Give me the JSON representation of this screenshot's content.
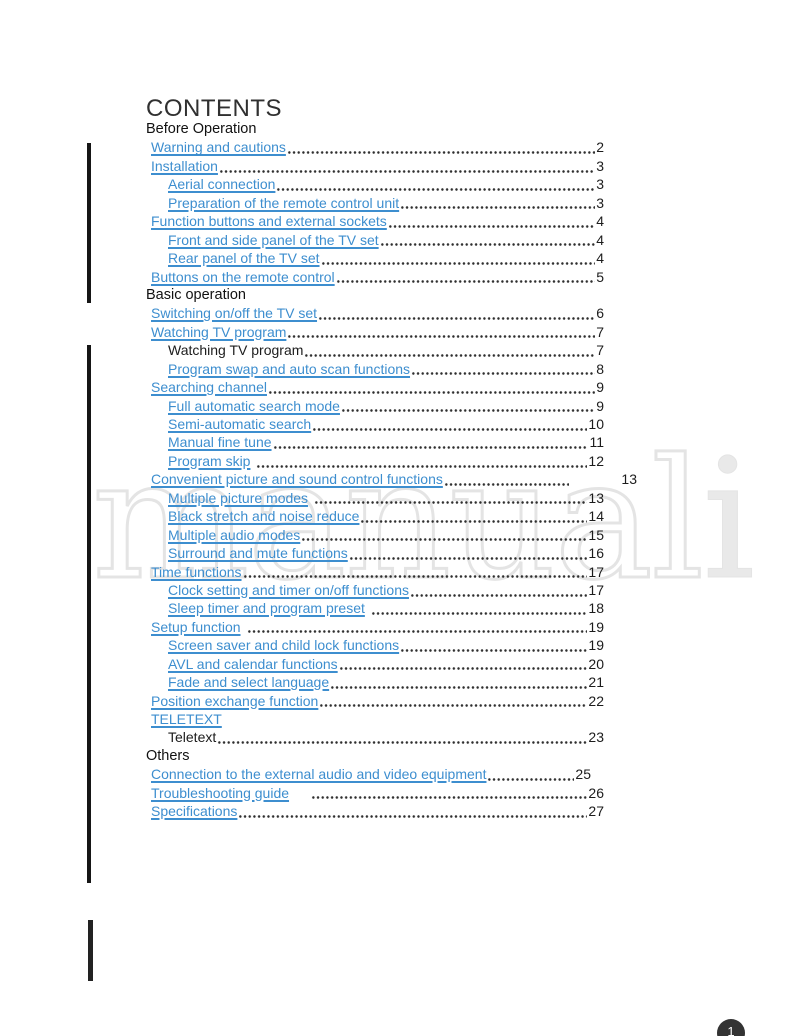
{
  "heading": "CONTENTS",
  "page_badge": "1",
  "watermark": {
    "outline_text": "manual",
    "solid_text": "i"
  },
  "colors": {
    "link_blue": "#3d8ecf",
    "body_text": "#1c1c1c",
    "watermark_gray": "#e4e4e4",
    "badge_dark": "#333333"
  },
  "toc": {
    "rows": [
      {
        "type": "section",
        "label": "Before Operation"
      },
      {
        "type": "entry",
        "level": 1,
        "link": true,
        "label": "Warning and cautions",
        "page": "2"
      },
      {
        "type": "entry",
        "level": 1,
        "link": true,
        "label": "Installation",
        "page": "3"
      },
      {
        "type": "entry",
        "level": 2,
        "link": true,
        "label": "Aerial connection",
        "page": "3"
      },
      {
        "type": "entry",
        "level": 2,
        "link": true,
        "label": "Preparation of the remote control unit",
        "page": "3"
      },
      {
        "type": "entry",
        "level": 1,
        "link": true,
        "label": "Function buttons and external sockets",
        "page": "4"
      },
      {
        "type": "entry",
        "level": 2,
        "link": true,
        "label": "Front and side panel of the TV set",
        "page": "4"
      },
      {
        "type": "entry",
        "level": 2,
        "link": true,
        "label": "Rear panel of the TV set",
        "page": "4"
      },
      {
        "type": "entry",
        "level": 1,
        "link": true,
        "label": "Buttons on the remote control",
        "page": "5"
      },
      {
        "type": "section",
        "label": "Basic operation"
      },
      {
        "type": "entry",
        "level": 1,
        "link": true,
        "label": "Switching on/off the TV set",
        "page": "6"
      },
      {
        "type": "entry",
        "level": 1,
        "link": true,
        "label": "Watching TV program",
        "page": "7"
      },
      {
        "type": "entry",
        "level": 2,
        "link": false,
        "label": "Watching TV program",
        "page": "7"
      },
      {
        "type": "entry",
        "level": 2,
        "link": true,
        "label": "Program swap and auto scan functions",
        "page": "8"
      },
      {
        "type": "entry",
        "level": 1,
        "link": true,
        "label": "Searching channel",
        "page": "9"
      },
      {
        "type": "entry",
        "level": 2,
        "link": true,
        "label": "Full automatic search mode",
        "page": "9"
      },
      {
        "type": "entry",
        "level": 2,
        "link": true,
        "label": "Semi-automatic search",
        "page": "10"
      },
      {
        "type": "entry",
        "level": 2,
        "link": true,
        "label": "Manual fine tune",
        "page": "11"
      },
      {
        "type": "entry",
        "level": 2,
        "link": true,
        "label": "Program skip",
        "page": "12",
        "variant": "gap"
      },
      {
        "type": "entry",
        "level": 1,
        "link": true,
        "label": "Convenient picture and sound control functions",
        "page": "13",
        "variant": "num-far"
      },
      {
        "type": "entry",
        "level": 2,
        "link": true,
        "label": "Multiple picture modes",
        "page": "13",
        "variant": "gap"
      },
      {
        "type": "entry",
        "level": 2,
        "link": true,
        "label": "Black stretch and noise reduce",
        "page": "14"
      },
      {
        "type": "entry",
        "level": 2,
        "link": true,
        "label": "Multiple audio modes",
        "page": "15"
      },
      {
        "type": "entry",
        "level": 2,
        "link": true,
        "label": "Surround and mute functions",
        "page": "16"
      },
      {
        "type": "entry",
        "level": 1,
        "link": true,
        "label": "Time functions",
        "page": "17"
      },
      {
        "type": "entry",
        "level": 2,
        "link": true,
        "label": "Clock setting and timer on/off functions",
        "page": "17"
      },
      {
        "type": "entry",
        "level": 2,
        "link": true,
        "label": "Sleep timer and program preset",
        "page": "18",
        "variant": "gap"
      },
      {
        "type": "entry",
        "level": 1,
        "link": true,
        "label": "Setup function",
        "page": "19",
        "variant": "gap"
      },
      {
        "type": "entry",
        "level": 2,
        "link": true,
        "label": "Screen saver and child lock functions",
        "page": "19"
      },
      {
        "type": "entry",
        "level": 2,
        "link": true,
        "label": "AVL and calendar functions",
        "page": "20"
      },
      {
        "type": "entry",
        "level": 2,
        "link": true,
        "label": "Fade and select language",
        "page": "21"
      },
      {
        "type": "entry",
        "level": 1,
        "link": true,
        "label": "Position exchange function",
        "page": "22"
      },
      {
        "type": "entry",
        "level": 1,
        "link": true,
        "label": "TELETEXT",
        "page": null
      },
      {
        "type": "entry",
        "level": 2,
        "link": false,
        "label": "Teletext",
        "page": "23"
      },
      {
        "type": "section",
        "label": "Others"
      },
      {
        "type": "entry",
        "level": 1,
        "link": true,
        "label": "Connection to the external audio and video equipment",
        "page": "25",
        "variant": "ends-early"
      },
      {
        "type": "entry",
        "level": 1,
        "link": true,
        "label": "Troubleshooting guide",
        "page": "26",
        "variant": "gap-wide"
      },
      {
        "type": "entry",
        "level": 1,
        "link": true,
        "label": "Specifications",
        "page": "27"
      }
    ]
  }
}
